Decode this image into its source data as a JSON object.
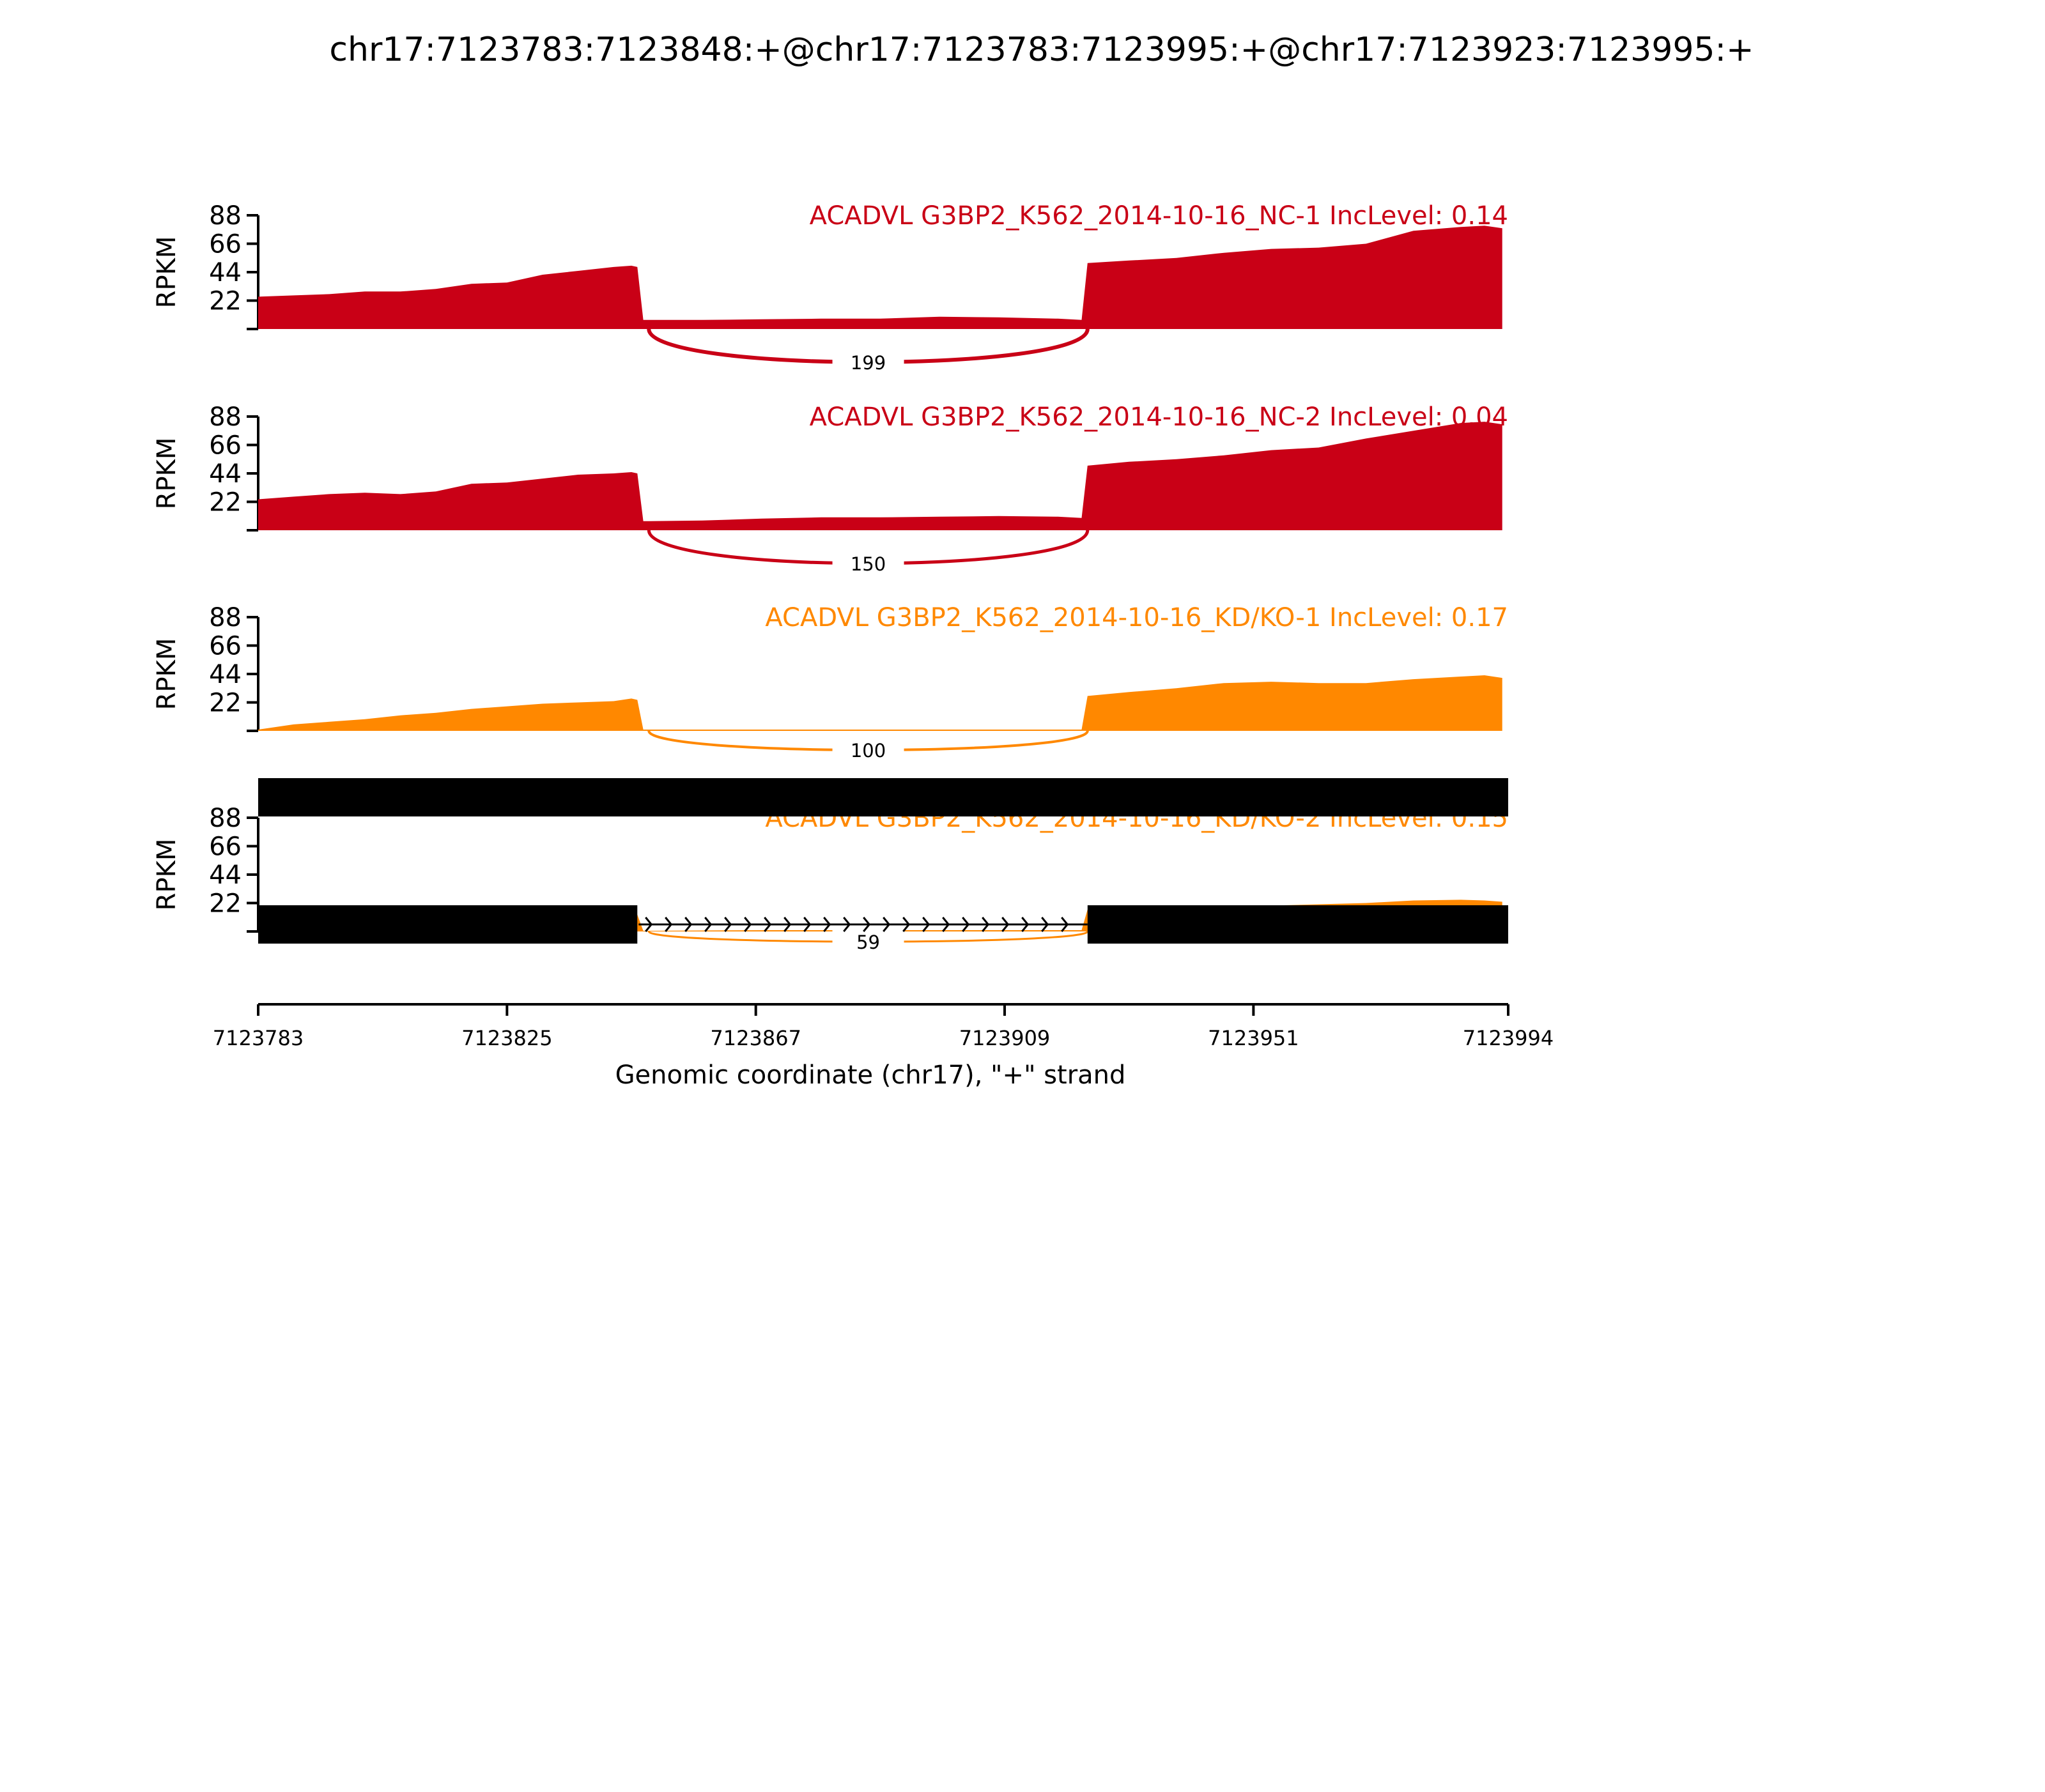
{
  "title": "chr17:7123783:7123848:+@chr17:7123783:7123995:+@chr17:7123923:7123995:+",
  "colors": {
    "NC": "#c90016",
    "KD": "#ff8800",
    "axis": "#000000",
    "gene": "#000000"
  },
  "chart_data": {
    "type": "area",
    "title": "chr17:7123783:7123848:+@chr17:7123783:7123995:+@chr17:7123923:7123995:+",
    "xlabel": "Genomic coordinate (chr17), \"+\" strand",
    "ylabel": "RPKM",
    "xlim": [
      7123783,
      7123994
    ],
    "ylim": [
      0,
      88
    ],
    "x_ticks": [
      "7123783",
      "7123825",
      "7123867",
      "7123909",
      "7123951",
      "7123994"
    ],
    "y_ticks": [
      "88",
      "66",
      "44",
      "22"
    ],
    "regions": {
      "exon_upstream": [
        7123783,
        7123847
      ],
      "exon_skipped": [
        7123848,
        7123922
      ],
      "exon_downstream": [
        7123923,
        7123994
      ]
    },
    "tracks": [
      {
        "label": "ACADVL G3BP2_K562_2014-10-16_NC-1 IncLevel: 0.14",
        "color_key": "NC",
        "junction_reads": "199",
        "coverage": [
          [
            7123783,
            25
          ],
          [
            7123789,
            26
          ],
          [
            7123795,
            27
          ],
          [
            7123801,
            29
          ],
          [
            7123807,
            29
          ],
          [
            7123813,
            31
          ],
          [
            7123819,
            35
          ],
          [
            7123825,
            36
          ],
          [
            7123831,
            42
          ],
          [
            7123837,
            45
          ],
          [
            7123843,
            48
          ],
          [
            7123846,
            49
          ],
          [
            7123847,
            48
          ],
          [
            7123848,
            7
          ],
          [
            7123858,
            7
          ],
          [
            7123868,
            7.5
          ],
          [
            7123878,
            8
          ],
          [
            7123888,
            8
          ],
          [
            7123898,
            9.5
          ],
          [
            7123908,
            9
          ],
          [
            7123918,
            8
          ],
          [
            7123922,
            7
          ],
          [
            7123923,
            51
          ],
          [
            7123930,
            53
          ],
          [
            7123938,
            55
          ],
          [
            7123946,
            59
          ],
          [
            7123954,
            62
          ],
          [
            7123962,
            63
          ],
          [
            7123970,
            66
          ],
          [
            7123978,
            76
          ],
          [
            7123986,
            79
          ],
          [
            7123990,
            80
          ],
          [
            7123993,
            78
          ]
        ]
      },
      {
        "label": "ACADVL G3BP2_K562_2014-10-16_NC-2 IncLevel: 0.04",
        "color_key": "NC",
        "junction_reads": "150",
        "coverage": [
          [
            7123783,
            24
          ],
          [
            7123789,
            26
          ],
          [
            7123795,
            28
          ],
          [
            7123801,
            29
          ],
          [
            7123807,
            28
          ],
          [
            7123813,
            30
          ],
          [
            7123819,
            36
          ],
          [
            7123825,
            37
          ],
          [
            7123831,
            40
          ],
          [
            7123837,
            43
          ],
          [
            7123843,
            44
          ],
          [
            7123846,
            45
          ],
          [
            7123847,
            44
          ],
          [
            7123848,
            7
          ],
          [
            7123858,
            7.5
          ],
          [
            7123868,
            9
          ],
          [
            7123878,
            10
          ],
          [
            7123888,
            10
          ],
          [
            7123898,
            10.5
          ],
          [
            7123908,
            11
          ],
          [
            7123918,
            10.5
          ],
          [
            7123922,
            9.5
          ],
          [
            7123923,
            50
          ],
          [
            7123930,
            53
          ],
          [
            7123938,
            55
          ],
          [
            7123946,
            58
          ],
          [
            7123954,
            62
          ],
          [
            7123962,
            64
          ],
          [
            7123970,
            71
          ],
          [
            7123978,
            77
          ],
          [
            7123986,
            83
          ],
          [
            7123990,
            84
          ],
          [
            7123993,
            82
          ]
        ]
      },
      {
        "label": "ACADVL G3BP2_K562_2014-10-16_KD/KO-1 IncLevel: 0.17",
        "color_key": "KD",
        "junction_reads": "100",
        "coverage": [
          [
            7123783,
            1
          ],
          [
            7123789,
            5
          ],
          [
            7123795,
            7
          ],
          [
            7123801,
            9
          ],
          [
            7123807,
            12
          ],
          [
            7123813,
            14
          ],
          [
            7123819,
            17
          ],
          [
            7123825,
            19
          ],
          [
            7123831,
            21
          ],
          [
            7123837,
            22
          ],
          [
            7123843,
            23
          ],
          [
            7123846,
            25
          ],
          [
            7123847,
            24
          ],
          [
            7123848,
            1
          ],
          [
            7123860,
            1
          ],
          [
            7123870,
            1
          ],
          [
            7123880,
            1
          ],
          [
            7123890,
            1
          ],
          [
            7123900,
            1
          ],
          [
            7123910,
            1
          ],
          [
            7123922,
            1
          ],
          [
            7123923,
            27
          ],
          [
            7123930,
            30
          ],
          [
            7123938,
            33
          ],
          [
            7123946,
            37
          ],
          [
            7123954,
            38
          ],
          [
            7123962,
            37
          ],
          [
            7123970,
            37
          ],
          [
            7123978,
            40
          ],
          [
            7123986,
            42
          ],
          [
            7123990,
            43
          ],
          [
            7123993,
            41
          ]
        ]
      },
      {
        "label": "ACADVL G3BP2_K562_2014-10-16_KD/KO-2 IncLevel: 0.15",
        "color_key": "KD",
        "junction_reads": "59",
        "coverage": [
          [
            7123783,
            2
          ],
          [
            7123789,
            2.5
          ],
          [
            7123795,
            3.5
          ],
          [
            7123801,
            5
          ],
          [
            7123807,
            6.5
          ],
          [
            7123813,
            8
          ],
          [
            7123819,
            9
          ],
          [
            7123825,
            10
          ],
          [
            7123831,
            11
          ],
          [
            7123837,
            12
          ],
          [
            7123843,
            12.5
          ],
          [
            7123846,
            14
          ],
          [
            7123847,
            13
          ],
          [
            7123848,
            0.5
          ],
          [
            7123860,
            0.8
          ],
          [
            7123870,
            1
          ],
          [
            7123880,
            1
          ],
          [
            7123890,
            1
          ],
          [
            7123900,
            1
          ],
          [
            7123910,
            1
          ],
          [
            7123922,
            1
          ],
          [
            7123923,
            17
          ],
          [
            7123930,
            17.5
          ],
          [
            7123938,
            18
          ],
          [
            7123946,
            19
          ],
          [
            7123954,
            20
          ],
          [
            7123962,
            21
          ],
          [
            7123970,
            22
          ],
          [
            7123978,
            24
          ],
          [
            7123986,
            24.5
          ],
          [
            7123990,
            24
          ],
          [
            7123993,
            23
          ]
        ]
      }
    ],
    "gene_models": [
      {
        "segments": [
          [
            7123783,
            7123994
          ]
        ],
        "introns": []
      },
      {
        "segments": [
          [
            7123783,
            7123847
          ],
          [
            7123923,
            7123994
          ]
        ],
        "introns": [
          [
            7123847,
            7123923
          ]
        ]
      }
    ]
  }
}
